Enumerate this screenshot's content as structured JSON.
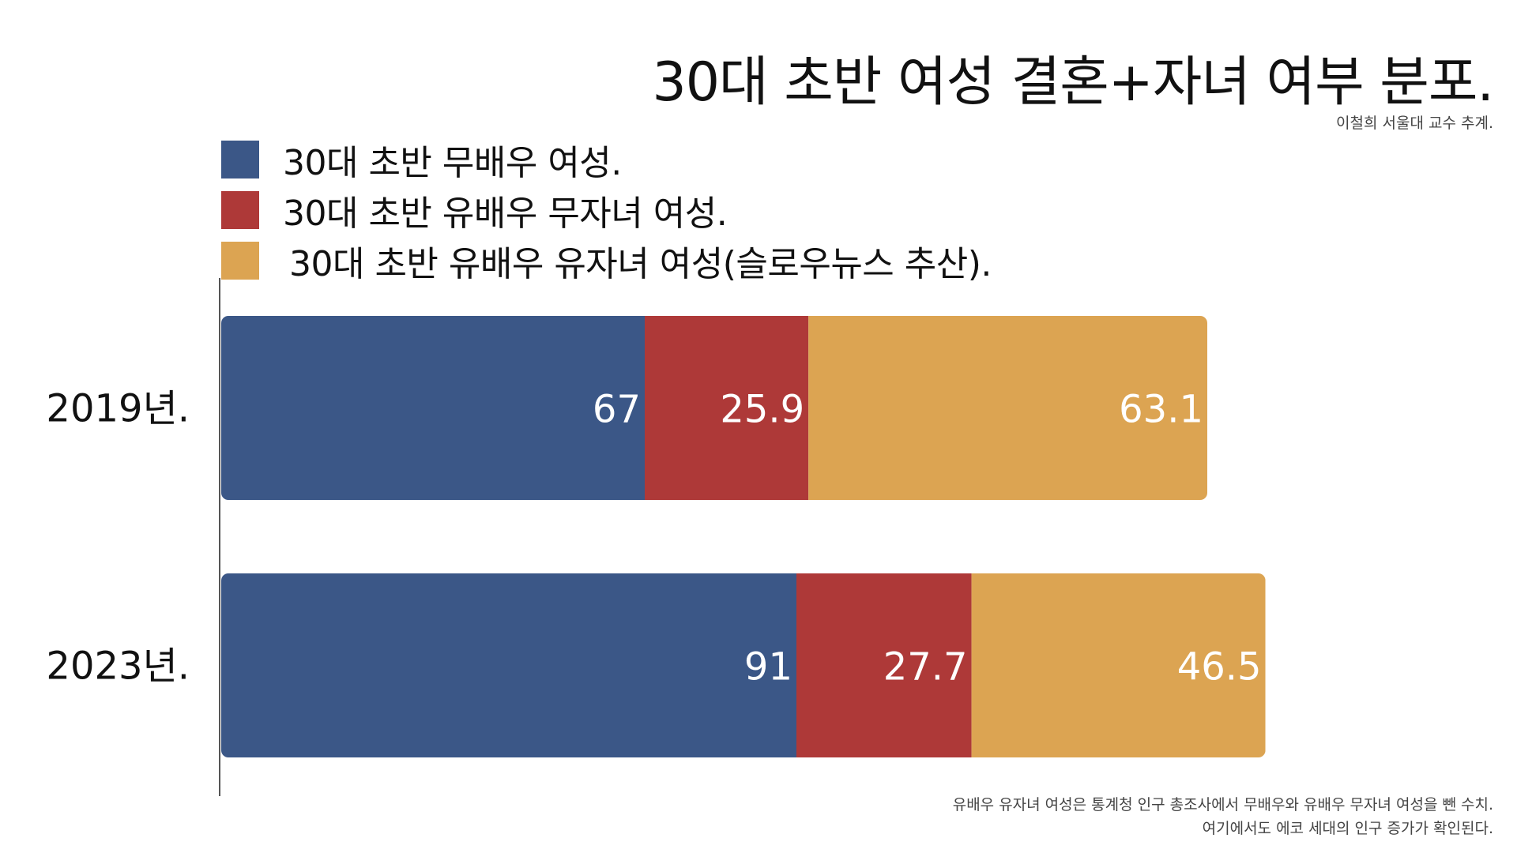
{
  "chart_data": {
    "type": "bar",
    "orientation": "horizontal",
    "stacked": true,
    "title": "30대 초반 여성 결혼+자녀 여부 분포.",
    "categories": [
      "2019년.",
      "2023년."
    ],
    "series": [
      {
        "name": "30대 초반 무배우 여성.",
        "values": [
          67,
          91
        ],
        "color": "#3b5787"
      },
      {
        "name": "30대 초반 유배우 무자녀 여성.",
        "values": [
          25.9,
          27.7
        ],
        "color": "#ae3938"
      },
      {
        "name": "30대 초반 유배우 유자녀 여성(슬로우뉴스 추산).",
        "values": [
          63.1,
          46.5
        ],
        "color": "#dca452"
      }
    ],
    "value_labels": [
      [
        "67",
        "25.9",
        "63.1"
      ],
      [
        "91",
        "27.7",
        "46.5"
      ]
    ],
    "legend_position": "top-left",
    "grid": false
  },
  "credit": "이철희 서울대 교수 추계.",
  "footnotes": [
    "유배우 유자녀 여성은 통계청 인구 총조사에서 무배우와 유배우 무자녀 여성을 뺀 수치.",
    "여기에서도 에코 세대의 인구 증가가 확인된다."
  ]
}
